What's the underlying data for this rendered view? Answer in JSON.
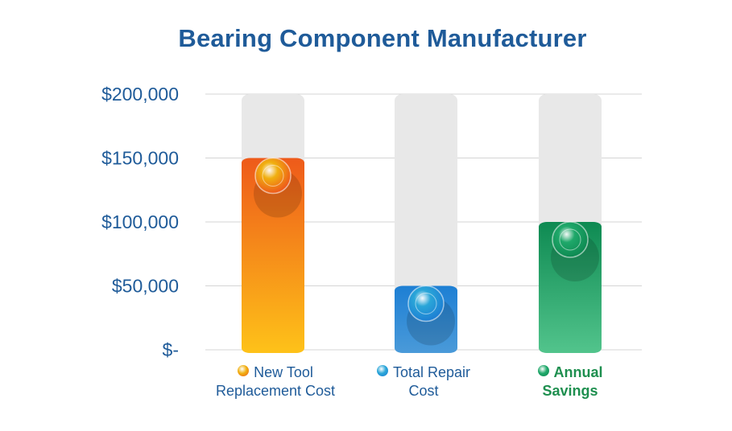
{
  "chart_data": {
    "type": "bar",
    "title": "Bearing Component Manufacturer",
    "xlabel": "",
    "ylabel": "",
    "categories": [
      "New Tool Replacement Cost",
      "Total Repair Cost",
      "Annual Savings"
    ],
    "category_lines": [
      [
        "New Tool",
        "Replacement Cost"
      ],
      [
        "Total Repair",
        "Cost"
      ],
      [
        "Annual",
        "Savings"
      ]
    ],
    "values": [
      150000,
      50000,
      100000
    ],
    "ylim": [
      0,
      200000
    ],
    "yticks": [
      0,
      50000,
      100000,
      150000,
      200000
    ],
    "ytick_labels": [
      "$-",
      "$50,000",
      "$100,000",
      "$150,000",
      "$200,000"
    ],
    "grid": true,
    "legend": "bottom",
    "colors": {
      "New Tool Replacement Cost": {
        "top": "#ee5a1a",
        "bottom": "#fec219",
        "gem": "#f0b010"
      },
      "Total Repair Cost": {
        "top": "#1d7fd4",
        "bottom": "#4a9ad9",
        "gem": "#2aa6d8"
      },
      "Annual Savings": {
        "top": "#0e8a52",
        "bottom": "#52c48c",
        "gem": "#1fa86a"
      }
    },
    "track_color": "#e8e8e8",
    "title_color": "#1f5b99"
  }
}
